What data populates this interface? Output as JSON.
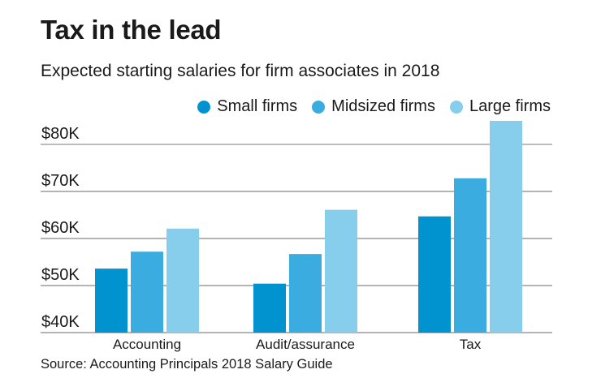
{
  "title": "Tax in the lead",
  "subtitle": "Expected starting salaries for firm associates in 2018",
  "source": "Source: Accounting Principals 2018 Salary Guide",
  "chart_data": {
    "type": "bar",
    "categories": [
      "Accounting",
      "Audit/assurance",
      "Tax"
    ],
    "series": [
      {
        "name": "Small firms",
        "color": "#0093d0",
        "values": [
          53.6,
          50.4,
          64.7
        ]
      },
      {
        "name": "Midsized firms",
        "color": "#3aacdf",
        "values": [
          57.2,
          56.7,
          72.8
        ]
      },
      {
        "name": "Large firms",
        "color": "#87cdec",
        "values": [
          62.1,
          66.1,
          85.0
        ]
      }
    ],
    "ylim": [
      40,
      85
    ],
    "yticks": [
      40,
      50,
      60,
      70,
      80
    ],
    "ytick_labels": [
      "$40K",
      "$50K",
      "$60K",
      "$70K",
      "$80K"
    ],
    "unit": "thousands of dollars",
    "grid": true,
    "legend": "top-right"
  }
}
